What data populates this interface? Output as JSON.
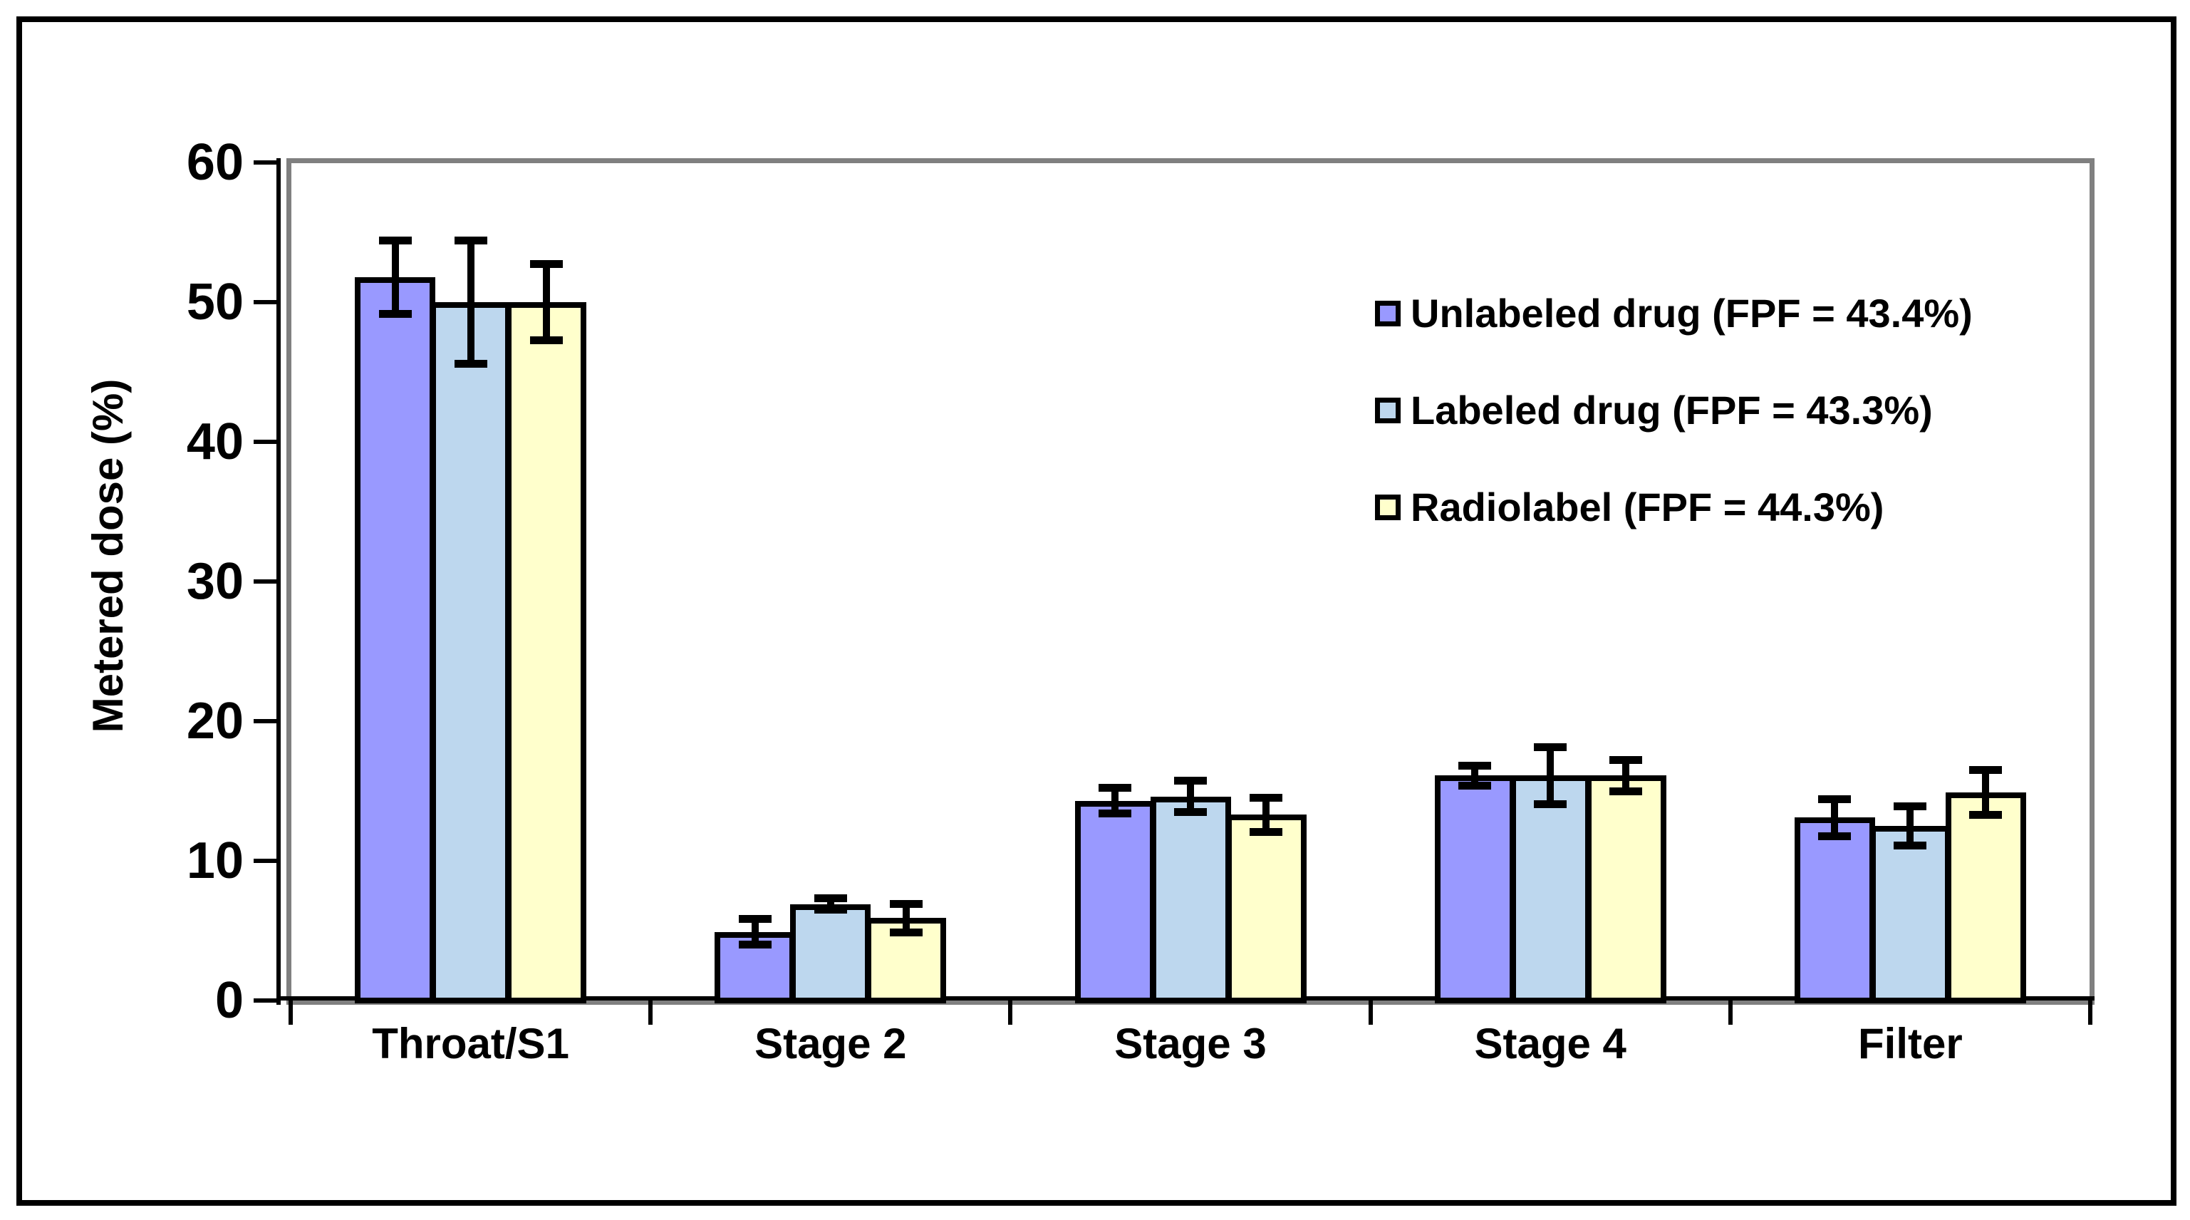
{
  "figure": {
    "background_color": "#ffffff",
    "border_color": "#000000",
    "plot_border_color": "#808080",
    "axis_color": "#000000",
    "error_bar_color": "#000000"
  },
  "chart_data": {
    "type": "bar",
    "title": "",
    "xlabel": "",
    "ylabel": "Metered dose (%)",
    "ylim": [
      0,
      60
    ],
    "yticks": [
      0,
      10,
      20,
      30,
      40,
      50,
      60
    ],
    "grid": false,
    "legend_position": "inside-top-right",
    "categories": [
      "Throat/S1",
      "Stage 2",
      "Stage 3",
      "Stage 4",
      "Filter"
    ],
    "series": [
      {
        "name": "Unlabeled drug (FPF = 43.4%)",
        "color": "#9999FF",
        "values": [
          51.8,
          4.9,
          14.3,
          16.1,
          13.1
        ],
        "errors": [
          2.9,
          1.2,
          1.2,
          1.0,
          1.6
        ]
      },
      {
        "name": "Labeled drug (FPF = 43.3%)",
        "color": "#BDD7EE",
        "values": [
          50.0,
          6.9,
          14.6,
          16.1,
          12.5
        ],
        "errors": [
          4.7,
          0.7,
          1.4,
          2.3,
          1.7
        ]
      },
      {
        "name": "Radiolabel (FPF = 44.3%)",
        "color": "#FFFFCC",
        "values": [
          50.0,
          5.9,
          13.3,
          16.1,
          14.9
        ],
        "errors": [
          3.0,
          1.3,
          1.5,
          1.4,
          1.9
        ]
      }
    ]
  }
}
